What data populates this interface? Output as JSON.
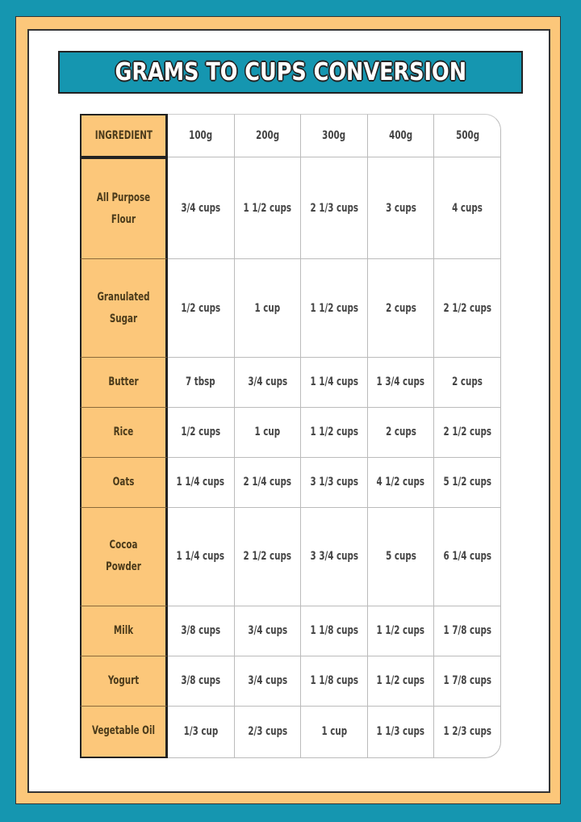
{
  "title": "GRAMS TO CUPS CONVERSION",
  "colors": {
    "background": "#1596b0",
    "frame": "#fcc77a",
    "title_bar": "#1596b0",
    "ingredient_column": "#fcc77a"
  },
  "table": {
    "headers": [
      "INGREDIENT",
      "100g",
      "200g",
      "300g",
      "400g",
      "500g"
    ],
    "rows": [
      {
        "ingredient": "All Purpose Flour",
        "values": [
          "3/4 cups",
          "1 1/2 cups",
          "2 1/3 cups",
          "3 cups",
          "4 cups"
        ]
      },
      {
        "ingredient": "Granulated Sugar",
        "values": [
          "1/2 cups",
          "1 cup",
          "1 1/2 cups",
          "2 cups",
          "2 1/2 cups"
        ]
      },
      {
        "ingredient": "Butter",
        "values": [
          "7 tbsp",
          "3/4 cups",
          "1 1/4 cups",
          "1 3/4 cups",
          "2 cups"
        ]
      },
      {
        "ingredient": "Rice",
        "values": [
          "1/2 cups",
          "1 cup",
          "1 1/2 cups",
          "2 cups",
          "2 1/2 cups"
        ]
      },
      {
        "ingredient": "Oats",
        "values": [
          "1 1/4 cups",
          "2 1/4 cups",
          "3 1/3 cups",
          "4 1/2 cups",
          "5 1/2 cups"
        ]
      },
      {
        "ingredient": "Cocoa Powder",
        "values": [
          "1 1/4 cups",
          "2 1/2 cups",
          "3 3/4 cups",
          "5 cups",
          "6 1/4 cups"
        ]
      },
      {
        "ingredient": "Milk",
        "values": [
          "3/8 cups",
          "3/4 cups",
          "1 1/8 cups",
          "1 1/2 cups",
          "1 7/8 cups"
        ]
      },
      {
        "ingredient": "Yogurt",
        "values": [
          "3/8 cups",
          "3/4 cups",
          "1 1/8 cups",
          "1 1/2 cups",
          "1 7/8 cups"
        ]
      },
      {
        "ingredient": "Vegetable Oil",
        "values": [
          "1/3 cup",
          "2/3 cups",
          "1 cup",
          "1 1/3 cups",
          "1 2/3 cups"
        ]
      }
    ]
  }
}
